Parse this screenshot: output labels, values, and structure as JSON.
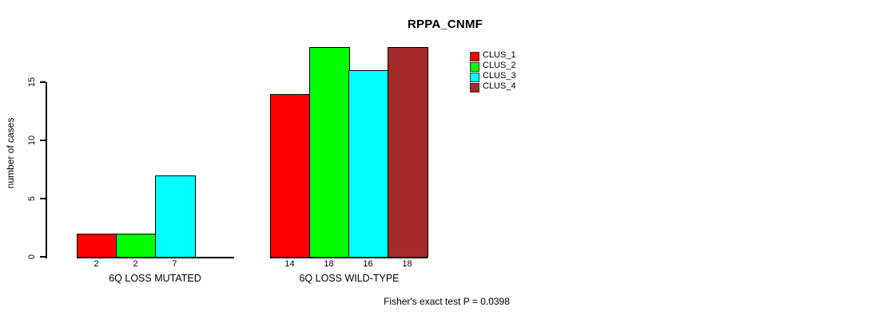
{
  "figure": {
    "background": "#FFFFFF",
    "line_color": "#000000"
  },
  "chart_data": {
    "type": "bar",
    "title": "RPPA_CNMF",
    "ylabel": "number of cases",
    "xlabel": "",
    "ylim": [
      0,
      18
    ],
    "yticks": [
      0,
      5,
      10,
      15
    ],
    "grid": false,
    "legend_position": "top-right",
    "legend": [
      {
        "name": "CLUS_1",
        "color": "#FF0000"
      },
      {
        "name": "CLUS_2",
        "color": "#00FF00"
      },
      {
        "name": "CLUS_3",
        "color": "#00FFFF"
      },
      {
        "name": "CLUS_4",
        "color": "#A52A2A"
      }
    ],
    "categories": [
      "CLUS_1",
      "CLUS_2",
      "CLUS_3",
      "CLUS_4"
    ],
    "groups": [
      {
        "label": "6Q LOSS MUTATED",
        "values": [
          2,
          2,
          7,
          0
        ],
        "bar_labels": [
          "2",
          "2",
          "7",
          ""
        ]
      },
      {
        "label": "6Q LOSS WILD-TYPE",
        "values": [
          14,
          18,
          16,
          18
        ],
        "bar_labels": [
          "14",
          "18",
          "16",
          "18"
        ]
      }
    ],
    "annotation": "Fisher's exact test P = 0.0398"
  }
}
